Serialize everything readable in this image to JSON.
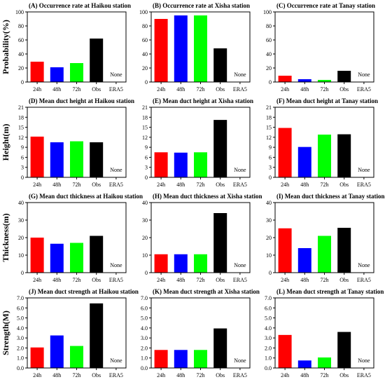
{
  "categories": [
    "24h",
    "48h",
    "72h",
    "Obs",
    "ERA5"
  ],
  "colors": [
    "#ff0000",
    "#0000ff",
    "#00ff00",
    "#000000"
  ],
  "none_label": "None",
  "row_ylabels": [
    "Probability(%)",
    "Height(m)",
    "Thickness(m)",
    "Strength(M)"
  ],
  "chart_data": [
    {
      "type": "bar",
      "title": "(A) Occurrence rate at Haikou station",
      "ylim": [
        0,
        100
      ],
      "yticks": [
        0,
        20,
        40,
        60,
        80,
        100
      ],
      "values": [
        29,
        21,
        27,
        62,
        null
      ]
    },
    {
      "type": "bar",
      "title": "(B) Occurrence rate at Xisha station",
      "ylim": [
        0,
        100
      ],
      "yticks": [
        0,
        20,
        40,
        60,
        80,
        100
      ],
      "values": [
        90,
        95,
        95,
        48,
        null
      ]
    },
    {
      "type": "bar",
      "title": "(C) Occurrence rate at Tanay station",
      "ylim": [
        0,
        100
      ],
      "yticks": [
        0,
        20,
        40,
        60,
        80,
        100
      ],
      "values": [
        9,
        4,
        3,
        16,
        null
      ]
    },
    {
      "type": "bar",
      "title": "(D) Mean duct height at Haikou station",
      "ylim": [
        0,
        21
      ],
      "yticks": [
        0,
        3,
        6,
        9,
        12,
        15,
        18,
        21
      ],
      "values": [
        12.2,
        10.5,
        10.8,
        10.5,
        null
      ]
    },
    {
      "type": "bar",
      "title": "(E) Mean duct height at Xisha station",
      "ylim": [
        0,
        21
      ],
      "yticks": [
        0,
        3,
        6,
        9,
        12,
        15,
        18,
        21
      ],
      "values": [
        7.5,
        7.4,
        7.5,
        17.2,
        null
      ]
    },
    {
      "type": "bar",
      "title": "(F) Mean duct height at Tanay station",
      "ylim": [
        0,
        21
      ],
      "yticks": [
        0,
        3,
        6,
        9,
        12,
        15,
        18,
        21
      ],
      "values": [
        14.8,
        9.1,
        12.8,
        12.9,
        null
      ]
    },
    {
      "type": "bar",
      "title": "(G) Mean duct thickness at Haikou station",
      "ylim": [
        0,
        40
      ],
      "yticks": [
        0,
        10,
        20,
        30,
        40
      ],
      "values": [
        20,
        16.5,
        17,
        21,
        null
      ]
    },
    {
      "type": "bar",
      "title": "(H) Mean duct thickness at Xisha station",
      "ylim": [
        0,
        40
      ],
      "yticks": [
        0,
        10,
        20,
        30,
        40
      ],
      "values": [
        10.5,
        10.5,
        10.5,
        34,
        null
      ]
    },
    {
      "type": "bar",
      "title": "(I) Mean duct thickness at Tanay station",
      "ylim": [
        0,
        40
      ],
      "yticks": [
        0,
        10,
        20,
        30,
        40
      ],
      "values": [
        25.3,
        14,
        21,
        25.6,
        null
      ]
    },
    {
      "type": "bar",
      "title": "(J) Mean duct strength at Haikou station",
      "ylim": [
        0,
        7
      ],
      "yticks": [
        "0.0",
        "1.0",
        "2.0",
        "3.0",
        "4.0",
        "5.0",
        "6.0",
        "7.0"
      ],
      "values": [
        2.05,
        3.25,
        2.2,
        6.45,
        null
      ]
    },
    {
      "type": "bar",
      "title": "(K) Mean duct strength at Xisha station",
      "ylim": [
        0,
        7
      ],
      "yticks": [
        "0.0",
        "1.0",
        "2.0",
        "3.0",
        "4.0",
        "5.0",
        "6.0",
        "7.0"
      ],
      "values": [
        1.8,
        1.8,
        1.8,
        3.95,
        null
      ]
    },
    {
      "type": "bar",
      "title": "(L) Mean duct strength at Tanay station",
      "ylim": [
        0,
        7
      ],
      "yticks": [
        "0.0",
        "1.0",
        "2.0",
        "3.0",
        "4.0",
        "5.0",
        "6.0",
        "7.0"
      ],
      "values": [
        3.3,
        0.75,
        1.05,
        3.6,
        null
      ]
    }
  ]
}
